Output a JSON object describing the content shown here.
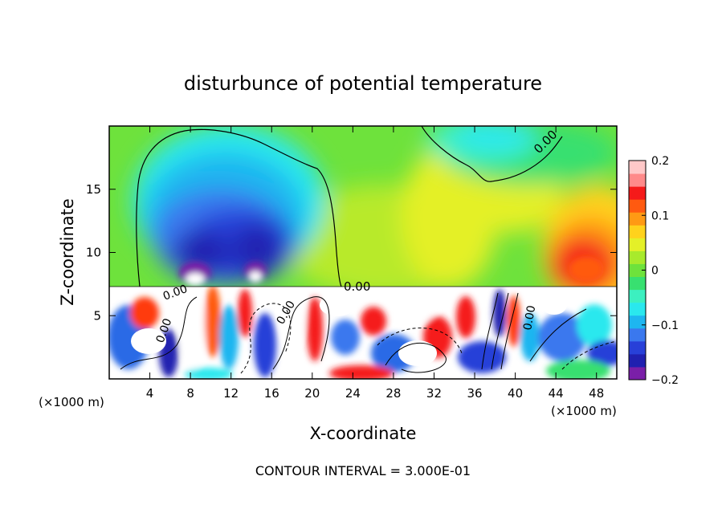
{
  "chart_data": {
    "type": "heatmap",
    "title": "disturbunce of potential temperature",
    "xlabel": "X-coordinate",
    "ylabel": "Z-coordinate",
    "x_unit": "(×1000 m)",
    "y_unit": "(×1000 m)",
    "xlim": [
      0,
      50
    ],
    "ylim": [
      0,
      20
    ],
    "x_ticks": [
      4,
      8,
      12,
      16,
      20,
      24,
      28,
      32,
      36,
      40,
      44,
      48
    ],
    "y_ticks": [
      5,
      10,
      15
    ],
    "colorbar": {
      "range": [
        -0.2,
        0.2
      ],
      "tick_values": [
        -0.2,
        -0.1,
        0,
        0.1,
        0.2
      ],
      "tick_labels": [
        "−0.2",
        "−0.1",
        "0",
        "0.1",
        "0.2"
      ],
      "colors": [
        "#7a1fa8",
        "#2020b0",
        "#2840d8",
        "#3a78ee",
        "#1eb6f0",
        "#2ae8ee",
        "#3cf0c0",
        "#38e070",
        "#6ee23c",
        "#a8ea2c",
        "#e4f028",
        "#ffd21c",
        "#ff9a14",
        "#ff5a10",
        "#f51a1a",
        "#ff8a8a",
        "#ffc8c8"
      ]
    },
    "contour_interval": "CONTOUR INTERVAL = 3.000E-01",
    "contour_labels": [
      "0.00",
      "0.00",
      "0.00",
      "0.00",
      "0.00",
      "0.00"
    ],
    "features": [
      {
        "name": "cold anomaly",
        "x": 9,
        "z": 11,
        "value": -0.17
      },
      {
        "name": "cold anomaly",
        "x": 15,
        "z": 11,
        "value": -0.17
      },
      {
        "name": "cool region",
        "x": 12,
        "z": 17,
        "value": -0.08
      },
      {
        "name": "cool region",
        "x": 34,
        "z": 18.5,
        "value": -0.05
      },
      {
        "name": "warm anomaly",
        "x": 46.5,
        "z": 10,
        "value": 0.15
      },
      {
        "name": "weak warm",
        "x": 29,
        "z": 11,
        "value": 0.06
      }
    ]
  }
}
